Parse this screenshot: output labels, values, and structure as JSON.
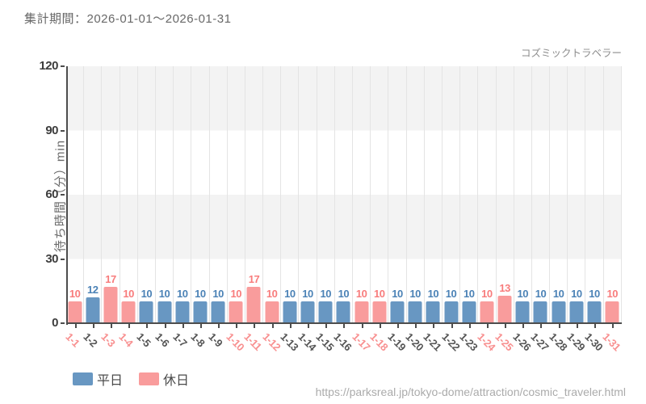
{
  "header": {
    "title": "集計期間：2026-01-01～2026-01-31"
  },
  "chart_data": {
    "type": "bar",
    "title": "集計期間：2026-01-01～2026-01-31",
    "attraction_label": "コズミックトラベラー",
    "ylabel": "待ち時間（分）min",
    "xlabel": "",
    "ylim": [
      0,
      120
    ],
    "yticks": [
      0,
      30,
      60,
      90,
      120
    ],
    "grid": "alternating horizontal bands with vertical category gridlines",
    "legend_position": "bottom-left",
    "categories": [
      "1-1",
      "1-2",
      "1-3",
      "1-4",
      "1-5",
      "1-6",
      "1-7",
      "1-8",
      "1-9",
      "1-10",
      "1-11",
      "1-12",
      "1-13",
      "1-14",
      "1-15",
      "1-16",
      "1-17",
      "1-18",
      "1-19",
      "1-20",
      "1-21",
      "1-22",
      "1-23",
      "1-24",
      "1-25",
      "1-26",
      "1-27",
      "1-28",
      "1-29",
      "1-30",
      "1-31"
    ],
    "series": [
      {
        "name": "待ち時間(分)",
        "values": [
          10,
          12,
          17,
          10,
          10,
          10,
          10,
          10,
          10,
          10,
          17,
          10,
          10,
          10,
          10,
          10,
          10,
          10,
          10,
          10,
          10,
          10,
          10,
          10,
          13,
          10,
          10,
          10,
          10,
          10,
          10
        ]
      }
    ],
    "day_types": [
      "holiday",
      "weekday",
      "holiday",
      "holiday",
      "weekday",
      "weekday",
      "weekday",
      "weekday",
      "weekday",
      "holiday",
      "holiday",
      "holiday",
      "weekday",
      "weekday",
      "weekday",
      "weekday",
      "holiday",
      "holiday",
      "weekday",
      "weekday",
      "weekday",
      "weekday",
      "weekday",
      "holiday",
      "holiday",
      "weekday",
      "weekday",
      "weekday",
      "weekday",
      "weekday",
      "holiday"
    ],
    "colors": {
      "weekday": "#6897c2",
      "holiday": "#f99c9c",
      "weekday_label": "#4b82b6",
      "holiday_label": "#f87c7c",
      "holiday_tick": "#f89090"
    }
  },
  "legend": {
    "weekday_label": "平日",
    "holiday_label": "休日"
  },
  "footer": {
    "source_url": "https://parksreal.jp/tokyo-dome/attraction/cosmic_traveler.html"
  }
}
